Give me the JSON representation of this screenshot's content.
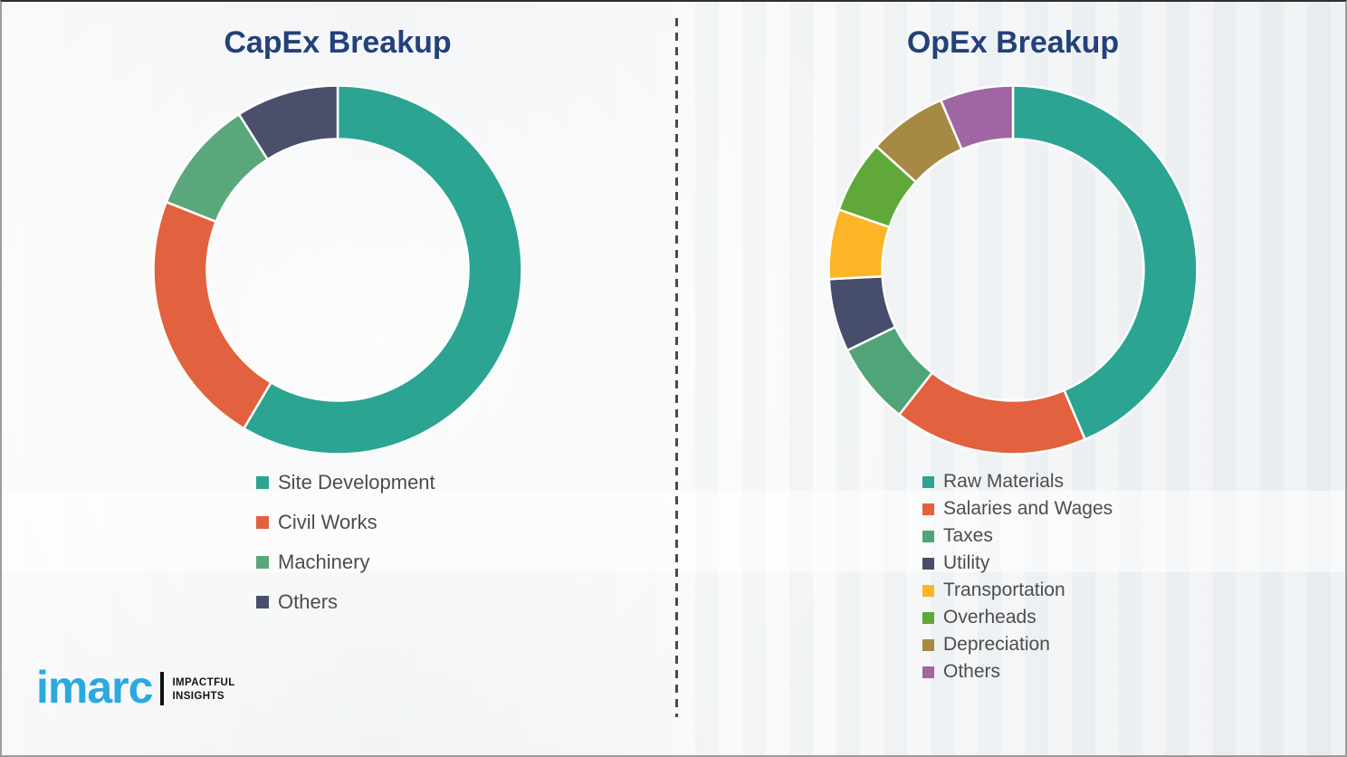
{
  "colors": {
    "background": "#f1f2f3",
    "title": "#23417a",
    "legend_text": "#4d4d4d",
    "divider": "#4a4a4a"
  },
  "divider": {
    "type": "vertical-dashed-line"
  },
  "chart_data": [
    {
      "type": "pie",
      "subtype": "donut",
      "title": "CapEx Breakup",
      "labels": [
        "Site Development",
        "Civil Works",
        "Machinery",
        "Others"
      ],
      "values": [
        58.5,
        22.5,
        10,
        9
      ],
      "colors": [
        "#2ba492",
        "#e2613e",
        "#5aa77c",
        "#4a506b"
      ],
      "start_angle_deg": 0,
      "direction": "clockwise",
      "inner_radius_ratio": 0.71,
      "legend_position": "below-left",
      "values_note": "percent estimated from arc angles; no numeric labels shown"
    },
    {
      "type": "pie",
      "subtype": "donut",
      "title": "OpEx Breakup",
      "labels": [
        "Raw Materials",
        "Salaries and Wages",
        "Taxes",
        "Utility",
        "Transportation",
        "Overheads",
        "Depreciation",
        "Others"
      ],
      "values": [
        43.6,
        17.0,
        7.2,
        6.4,
        6.1,
        6.4,
        6.9,
        6.4
      ],
      "colors": [
        "#2ba492",
        "#e2613e",
        "#4fa478",
        "#474e6b",
        "#fbb527",
        "#5fa839",
        "#a68a44",
        "#a066a3"
      ],
      "start_angle_deg": 0,
      "direction": "clockwise",
      "inner_radius_ratio": 0.71,
      "legend_position": "below-left",
      "values_note": "percent estimated from arc angles; no numeric labels shown"
    }
  ],
  "branding": {
    "logo_text": "imarc",
    "tagline": [
      "IMPACTFUL",
      "INSIGHTS"
    ],
    "logo_color": "#2aa9e1"
  }
}
